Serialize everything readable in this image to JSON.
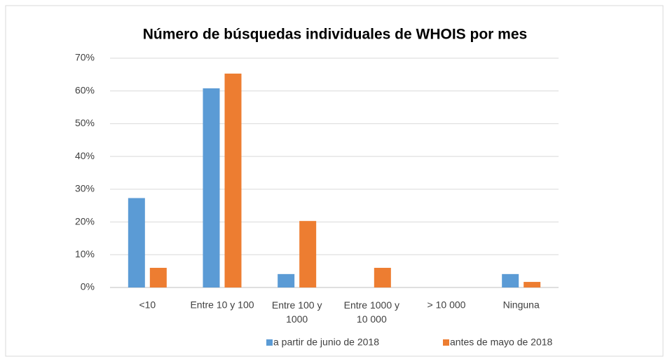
{
  "chart_data": {
    "type": "bar",
    "title": "Número de búsquedas individuales de WHOIS por mes",
    "categories": [
      "<10",
      "Entre 10 y 100",
      "Entre 100 y 1000",
      "Entre 1000 y 10 000",
      "> 10 000",
      "Ninguna"
    ],
    "series": [
      {
        "name": "a partir de junio de 2018",
        "color": "#5b9bd5",
        "values": [
          27.3,
          60.8,
          4.1,
          0,
          0,
          4.1
        ]
      },
      {
        "name": "antes de mayo de 2018",
        "color": "#ed7d31",
        "values": [
          6.0,
          65.3,
          20.3,
          6.0,
          0,
          1.7
        ]
      }
    ],
    "ylim": [
      0,
      70
    ],
    "yticks": [
      {
        "value": 0,
        "label": "0%"
      },
      {
        "value": 10,
        "label": "10%"
      },
      {
        "value": 20,
        "label": "20%"
      },
      {
        "value": 30,
        "label": "30%"
      },
      {
        "value": 40,
        "label": "40%"
      },
      {
        "value": 50,
        "label": "50%"
      },
      {
        "value": 60,
        "label": "60%"
      },
      {
        "value": 70,
        "label": "70%"
      }
    ],
    "grid": true,
    "legend": "bottom"
  }
}
